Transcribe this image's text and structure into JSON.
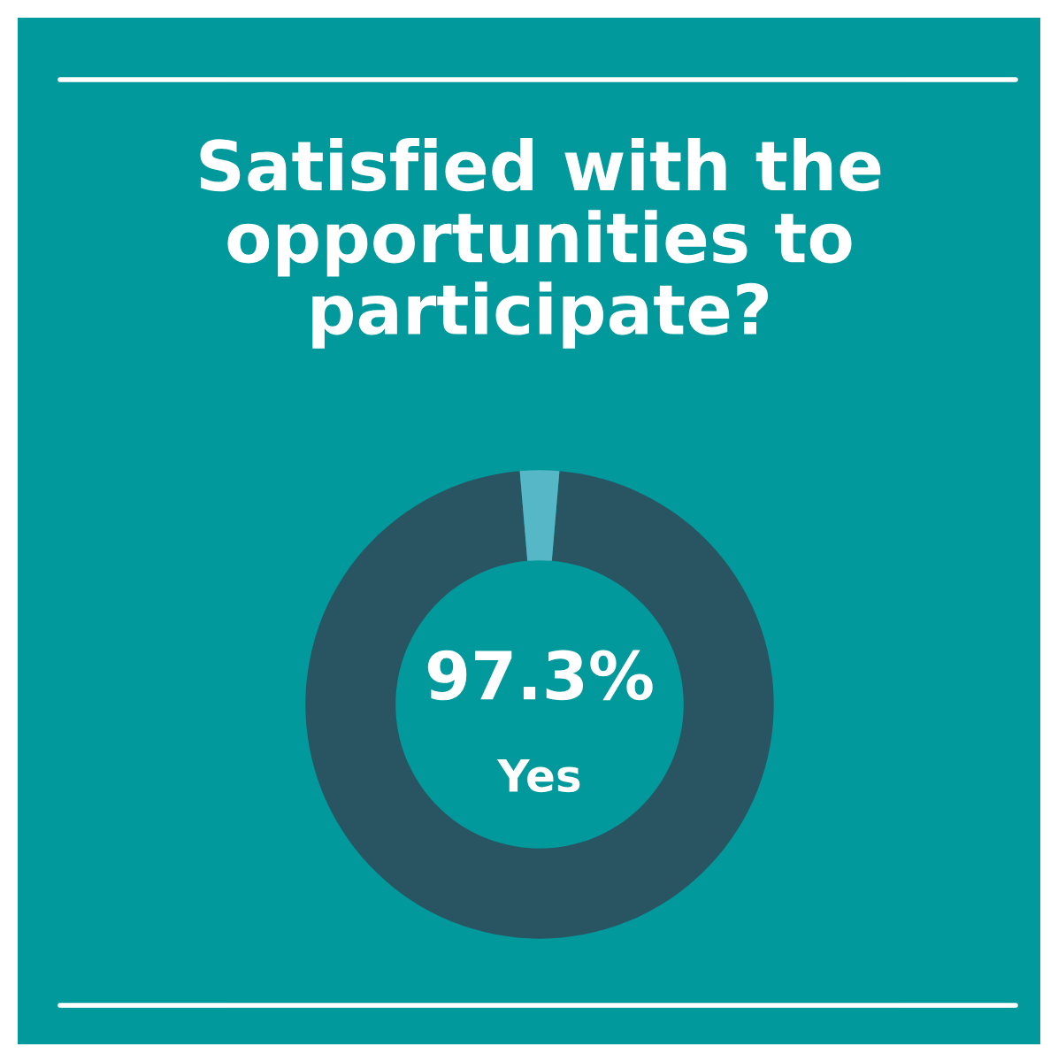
{
  "chart_data": {
    "type": "donut",
    "title": "Satisfied with the\nopportunities to\nparticipate?",
    "categories": [
      "Yes",
      null
    ],
    "values": [
      97.3,
      2.7
    ],
    "colors": [
      "#285561",
      "#56b8c6"
    ],
    "value_labels": [
      "97.3%",
      null
    ],
    "legend": false
  }
}
